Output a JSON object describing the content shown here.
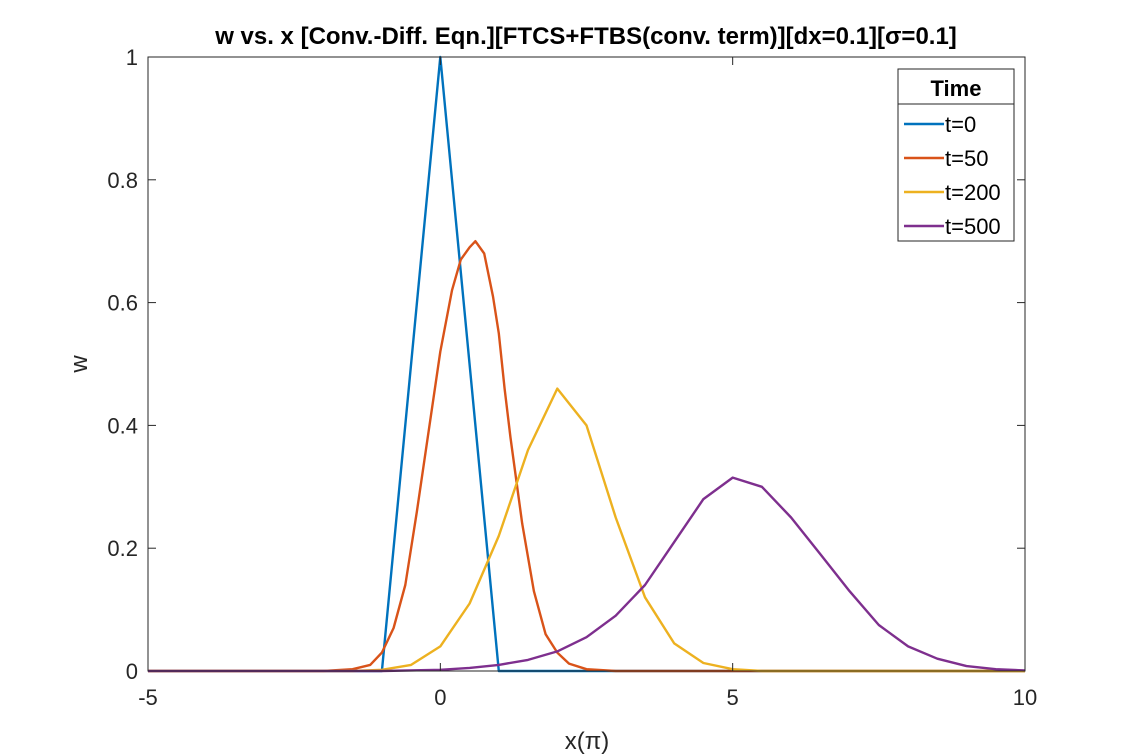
{
  "chart_data": {
    "type": "line",
    "title": "w vs. x [Conv.-Diff. Eqn.][FTCS+FTBS(conv. term)][dx=0.1][σ=0.1]",
    "xlabel": "x(π)",
    "ylabel": "w",
    "xlim": [
      -5,
      10
    ],
    "ylim": [
      0,
      1
    ],
    "xticks": [
      -5,
      0,
      5,
      10
    ],
    "xtick_labels": [
      "-5",
      "0",
      "5",
      "10"
    ],
    "yticks": [
      0,
      0.2,
      0.4,
      0.6,
      0.8,
      1
    ],
    "ytick_labels": [
      "0",
      "0.2",
      "0.4",
      "0.6",
      "0.8",
      "1"
    ],
    "grid": false,
    "legend": {
      "title": "Time",
      "placement": "top-right"
    },
    "series": [
      {
        "name": "t=0",
        "color": "#0072BD",
        "x": [
          -5,
          -1,
          0,
          1,
          10
        ],
        "y": [
          0,
          0,
          1,
          0,
          0
        ]
      },
      {
        "name": "t=50",
        "color": "#D95319",
        "x": [
          -5,
          -2,
          -1.5,
          -1.2,
          -1,
          -0.8,
          -0.6,
          -0.4,
          -0.2,
          0,
          0.2,
          0.35,
          0.5,
          0.6,
          0.75,
          0.9,
          1.0,
          1.1,
          1.2,
          1.4,
          1.6,
          1.8,
          2.0,
          2.2,
          2.5,
          3,
          10
        ],
        "y": [
          0,
          0,
          0.003,
          0.01,
          0.03,
          0.07,
          0.14,
          0.26,
          0.39,
          0.52,
          0.62,
          0.67,
          0.69,
          0.7,
          0.68,
          0.61,
          0.55,
          0.46,
          0.38,
          0.24,
          0.13,
          0.06,
          0.03,
          0.012,
          0.003,
          0,
          0
        ]
      },
      {
        "name": "t=200",
        "color": "#EDB120",
        "x": [
          -5,
          -1.5,
          -1,
          -0.5,
          0,
          0.5,
          1,
          1.5,
          2,
          2.5,
          3,
          3.5,
          4,
          4.5,
          5,
          5.5,
          10
        ],
        "y": [
          0,
          0,
          0.002,
          0.01,
          0.04,
          0.11,
          0.22,
          0.36,
          0.46,
          0.4,
          0.25,
          0.12,
          0.045,
          0.013,
          0.003,
          0,
          0
        ]
      },
      {
        "name": "t=500",
        "color": "#7E2F8E",
        "x": [
          -5,
          -1,
          0,
          0.5,
          1,
          1.5,
          2,
          2.5,
          3,
          3.5,
          4,
          4.5,
          5,
          5.5,
          6,
          6.5,
          7,
          7.5,
          8,
          8.5,
          9,
          9.5,
          10
        ],
        "y": [
          0,
          0,
          0.002,
          0.005,
          0.01,
          0.018,
          0.032,
          0.055,
          0.09,
          0.14,
          0.21,
          0.28,
          0.315,
          0.3,
          0.25,
          0.19,
          0.13,
          0.075,
          0.04,
          0.02,
          0.008,
          0.003,
          0.001
        ]
      }
    ]
  }
}
